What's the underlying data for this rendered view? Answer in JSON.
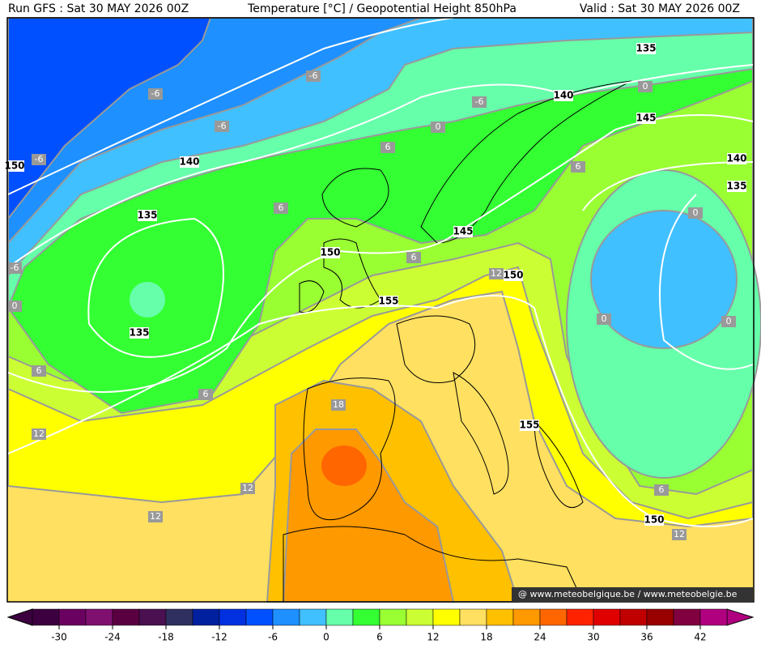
{
  "header": {
    "run": "Run GFS : Sat 30 MAY 2026 00Z",
    "title": "Temperature [°C] / Geopotential Height 850hPa",
    "valid": "Valid : Sat 30 MAY 2026 00Z"
  },
  "map": {
    "height_labels": [
      135,
      140,
      145,
      140,
      135,
      150,
      140,
      135,
      150,
      145,
      150,
      155,
      135,
      155,
      150
    ],
    "temperature_labels": [
      -6,
      -6,
      -6,
      -6,
      -6,
      0,
      -6,
      0,
      6,
      6,
      0,
      6,
      6,
      12,
      0,
      0,
      0,
      6,
      6,
      18,
      12,
      12,
      12,
      6,
      12
    ]
  },
  "colorbar": {
    "lim": [
      -33,
      45
    ],
    "ticks": [
      -30,
      -24,
      -18,
      -12,
      -6,
      0,
      6,
      12,
      18,
      24,
      30,
      36,
      42
    ],
    "colors": [
      "#3c0040",
      "#6a0060",
      "#801070",
      "#5a0040",
      "#4a1050",
      "#303060",
      "#0020a0",
      "#0030e0",
      "#0050ff",
      "#1e90ff",
      "#40c0ff",
      "#66ffaa",
      "#33ff33",
      "#99ff33",
      "#ccff33",
      "#ffff00",
      "#ffe060",
      "#ffc000",
      "#ff9900",
      "#ff6600",
      "#ff2200",
      "#e00000",
      "#c00000",
      "#990000",
      "#800040",
      "#b00080"
    ]
  },
  "credit": "@ www.meteobelgique.be / www.meteobelgie.be"
}
